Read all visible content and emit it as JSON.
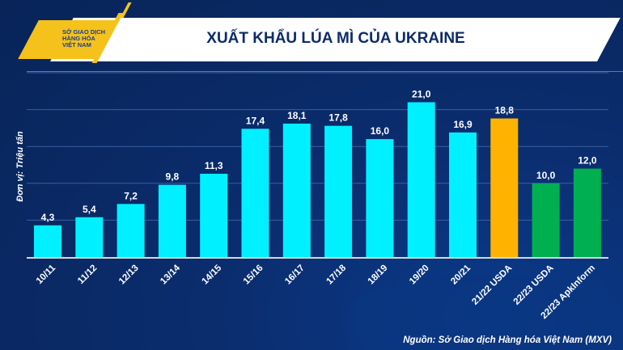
{
  "header": {
    "title": "XUẤT KHẨU LÚA MÌ CỦA UKRAINE",
    "logo_text": [
      "SỞ GIAO DỊCH",
      "HÀNG HÓA",
      "VIỆT NAM"
    ]
  },
  "source": "Nguồn: Sở Giao dịch Hàng hóa Việt Nam (MXV)",
  "chart_data": {
    "type": "bar",
    "title": "XUẤT KHẨU LÚA MÌ CỦA UKRAINE",
    "ylabel": "Đơn vị: Triệu tấn",
    "xlabel": "",
    "ylim": [
      0,
      25
    ],
    "grid": true,
    "categories": [
      "10/11",
      "11/12",
      "12/13",
      "13/14",
      "14/15",
      "15/16",
      "16/17",
      "17/18",
      "18/19",
      "19/20",
      "20/21",
      "21/22 USDA",
      "22/23 USDA",
      "22/23 ApkInform"
    ],
    "values": [
      4.3,
      5.4,
      7.2,
      9.8,
      11.3,
      17.4,
      18.1,
      17.8,
      16.0,
      21.0,
      16.9,
      18.8,
      10.0,
      12.0
    ],
    "labels": [
      "4,3",
      "5,4",
      "7,2",
      "9,8",
      "11,3",
      "17,4",
      "18,1",
      "17,8",
      "16,0",
      "21,0",
      "16,9",
      "18,8",
      "10,0",
      "12,0"
    ],
    "colors": [
      "#00f0ff",
      "#00f0ff",
      "#00f0ff",
      "#00f0ff",
      "#00f0ff",
      "#00f0ff",
      "#00f0ff",
      "#00f0ff",
      "#00f0ff",
      "#00f0ff",
      "#00f0ff",
      "#ffb300",
      "#00b050",
      "#00b050"
    ]
  }
}
